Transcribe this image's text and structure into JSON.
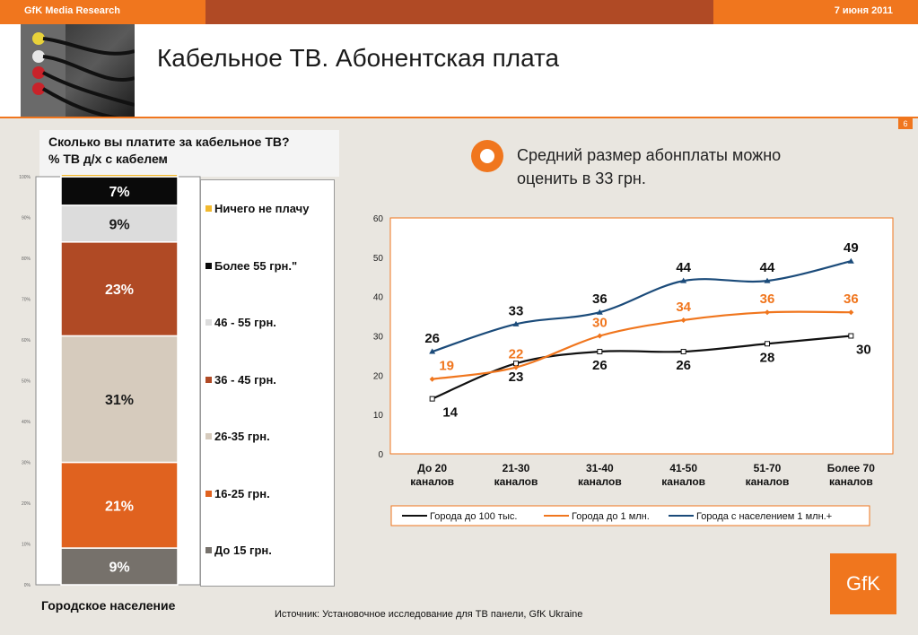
{
  "header": {
    "brand": "GfK Media Research",
    "date": "7 июня 2011",
    "title": "Кабельное ТВ. Абонентская плата",
    "page_number": "6"
  },
  "left_panel": {
    "question_line1": "Сколько вы платите за кабельное ТВ?",
    "question_line2": "% ТВ д/х с кабелем",
    "bottom_label": "Городское население"
  },
  "right_panel": {
    "statement_line1": "Средний размер абонплаты можно",
    "statement_line2": "оценить в 33 грн."
  },
  "footer": {
    "source": "Источник: Установочное исследование для ТВ панели, GfK Ukraine",
    "logo": "GfK"
  },
  "colors": {
    "accent": "#f0761e",
    "dark_orange": "#b04a25",
    "navy": "#1b4b7a"
  },
  "chart_data": [
    {
      "type": "bar",
      "stacked": true,
      "ylim": [
        0,
        100
      ],
      "yticks": [
        "0%",
        "10%",
        "20%",
        "30%",
        "40%",
        "50%",
        "60%",
        "70%",
        "80%",
        "90%",
        "100%"
      ],
      "segments": [
        {
          "name": "До 15 грн.",
          "value": 9,
          "label": "9%",
          "color": "#76716b",
          "label_color": "#ffffff"
        },
        {
          "name": "16-25 грн.",
          "value": 21,
          "label": "21%",
          "color": "#e0621f",
          "label_color": "#ffffff"
        },
        {
          "name": "26-35 грн.",
          "value": 31,
          "label": "31%",
          "color": "#d6cbbd",
          "label_color": "#1a1a1a"
        },
        {
          "name": "36 - 45 грн.",
          "value": 23,
          "label": "23%",
          "color": "#b04a25",
          "label_color": "#ffffff"
        },
        {
          "name": "46 - 55 грн.",
          "value": 9,
          "label": "9%",
          "color": "#dcdcdc",
          "label_color": "#1a1a1a"
        },
        {
          "name": "Более 55 грн.\"",
          "value": 7,
          "label": "7%",
          "color": "#0a0a0a",
          "label_color": "#ffffff"
        },
        {
          "name": "Ничего не плачу",
          "value": 1,
          "label": "",
          "color": "#f2b92e",
          "label_color": "#1a1a1a"
        }
      ],
      "legend_order": [
        "Ничего не плачу",
        "Более 55 грн.\"",
        "46 - 55 грн.",
        "36 - 45 грн.",
        "26-35 грн.",
        "16-25 грн.",
        "До 15 грн."
      ]
    },
    {
      "type": "line",
      "categories": [
        [
          "До 20",
          "каналов"
        ],
        [
          "21-30",
          "каналов"
        ],
        [
          "31-40",
          "каналов"
        ],
        [
          "41-50",
          "каналов"
        ],
        [
          "51-70",
          "каналов"
        ],
        [
          "Более 70",
          "каналов"
        ]
      ],
      "ylim": [
        0,
        60
      ],
      "yticks": [
        0,
        10,
        20,
        30,
        40,
        50,
        60
      ],
      "legend_position": "bottom",
      "series": [
        {
          "name": "Города до 100 тыс.",
          "values": [
            14,
            23,
            26,
            26,
            28,
            30
          ],
          "color": "#111111",
          "marker": "square",
          "label_color": "#111111",
          "labels_below": true
        },
        {
          "name": "Города до 1 млн.",
          "values": [
            19,
            22,
            30,
            34,
            36,
            36
          ],
          "color": "#f0761e",
          "marker": "diamond",
          "label_color": "#f0761e",
          "labels_below": false
        },
        {
          "name": "Города с населением 1 млн.+",
          "values": [
            26,
            33,
            36,
            44,
            44,
            49
          ],
          "color": "#1b4b7a",
          "marker": "triangle",
          "label_color": "#111111",
          "labels_below": false
        }
      ]
    }
  ]
}
